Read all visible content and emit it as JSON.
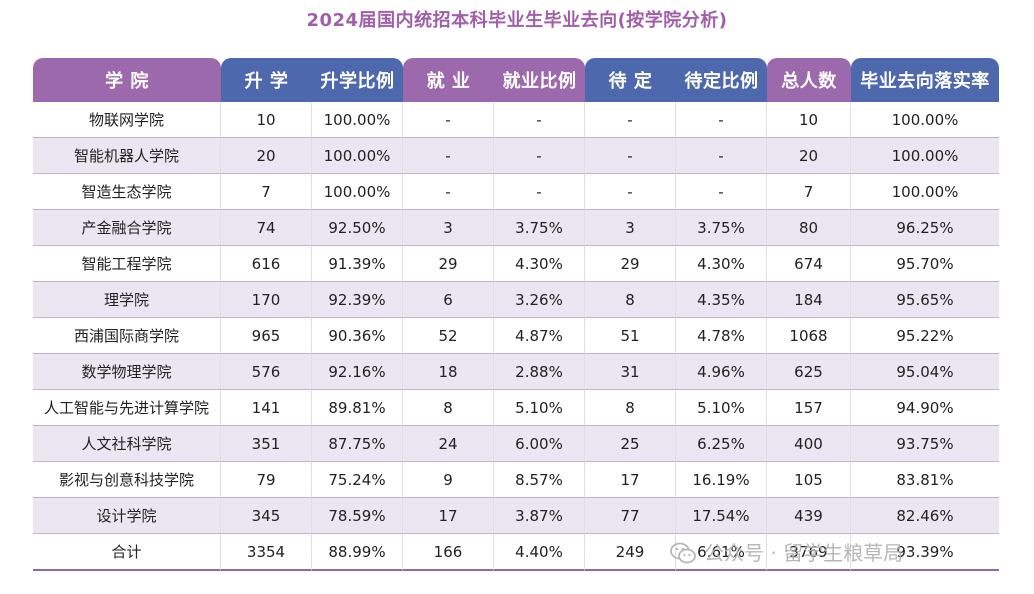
{
  "title": "2024届国内统招本科毕业生毕业去向(按学院分析)",
  "header": {
    "college": "学 院",
    "further": "升 学",
    "further_rate": "升学比例",
    "employed": "就 业",
    "employed_rate": "就业比例",
    "pending": "待 定",
    "pending_rate": "待定比例",
    "total": "总人数",
    "placement_rate": "毕业去向落实率"
  },
  "rows": [
    {
      "college": "物联网学院",
      "further": "10",
      "further_rate": "100.00%",
      "employed": "-",
      "employed_rate": "-",
      "pending": "-",
      "pending_rate": "-",
      "total": "10",
      "placement_rate": "100.00%"
    },
    {
      "college": "智能机器人学院",
      "further": "20",
      "further_rate": "100.00%",
      "employed": "-",
      "employed_rate": "-",
      "pending": "-",
      "pending_rate": "-",
      "total": "20",
      "placement_rate": "100.00%"
    },
    {
      "college": "智造生态学院",
      "further": "7",
      "further_rate": "100.00%",
      "employed": "-",
      "employed_rate": "-",
      "pending": "-",
      "pending_rate": "-",
      "total": "7",
      "placement_rate": "100.00%"
    },
    {
      "college": "产金融合学院",
      "further": "74",
      "further_rate": "92.50%",
      "employed": "3",
      "employed_rate": "3.75%",
      "pending": "3",
      "pending_rate": "3.75%",
      "total": "80",
      "placement_rate": "96.25%"
    },
    {
      "college": "智能工程学院",
      "further": "616",
      "further_rate": "91.39%",
      "employed": "29",
      "employed_rate": "4.30%",
      "pending": "29",
      "pending_rate": "4.30%",
      "total": "674",
      "placement_rate": "95.70%"
    },
    {
      "college": "理学院",
      "further": "170",
      "further_rate": "92.39%",
      "employed": "6",
      "employed_rate": "3.26%",
      "pending": "8",
      "pending_rate": "4.35%",
      "total": "184",
      "placement_rate": "95.65%"
    },
    {
      "college": "西浦国际商学院",
      "further": "965",
      "further_rate": "90.36%",
      "employed": "52",
      "employed_rate": "4.87%",
      "pending": "51",
      "pending_rate": "4.78%",
      "total": "1068",
      "placement_rate": "95.22%"
    },
    {
      "college": "数学物理学院",
      "further": "576",
      "further_rate": "92.16%",
      "employed": "18",
      "employed_rate": "2.88%",
      "pending": "31",
      "pending_rate": "4.96%",
      "total": "625",
      "placement_rate": "95.04%"
    },
    {
      "college": "人工智能与先进计算学院",
      "further": "141",
      "further_rate": "89.81%",
      "employed": "8",
      "employed_rate": "5.10%",
      "pending": "8",
      "pending_rate": "5.10%",
      "total": "157",
      "placement_rate": "94.90%"
    },
    {
      "college": "人文社科学院",
      "further": "351",
      "further_rate": "87.75%",
      "employed": "24",
      "employed_rate": "6.00%",
      "pending": "25",
      "pending_rate": "6.25%",
      "total": "400",
      "placement_rate": "93.75%"
    },
    {
      "college": "影视与创意科技学院",
      "further": "79",
      "further_rate": "75.24%",
      "employed": "9",
      "employed_rate": "8.57%",
      "pending": "17",
      "pending_rate": "16.19%",
      "total": "105",
      "placement_rate": "83.81%"
    },
    {
      "college": "设计学院",
      "further": "345",
      "further_rate": "78.59%",
      "employed": "17",
      "employed_rate": "3.87%",
      "pending": "77",
      "pending_rate": "17.54%",
      "total": "439",
      "placement_rate": "82.46%"
    },
    {
      "college": "合计",
      "further": "3354",
      "further_rate": "88.99%",
      "employed": "166",
      "employed_rate": "4.40%",
      "pending": "249",
      "pending_rate": "6.61%",
      "total": "3769",
      "placement_rate": "93.39%"
    }
  ],
  "watermark": "公众号 · 留学生粮草局",
  "icons": {
    "watermark": "wechat-icon"
  },
  "colors": {
    "title": "#a05fa8",
    "header_purple": "#9c6aac",
    "header_blue": "#4d68ad",
    "row_alt": "#ece5f2"
  }
}
